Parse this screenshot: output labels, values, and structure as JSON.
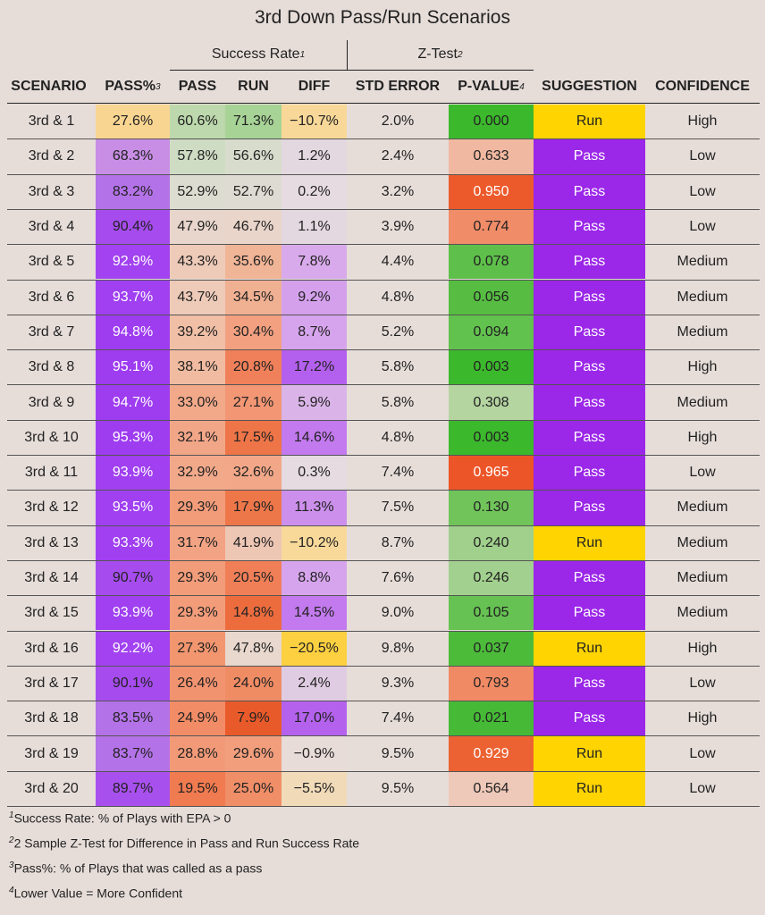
{
  "title": "3rd Down Pass/Run Scenarios",
  "groups": [
    {
      "label": "Success Rate",
      "note": "1"
    },
    {
      "label": "Z-Test",
      "note": "2"
    }
  ],
  "columns": [
    {
      "label": "SCENARIO"
    },
    {
      "label": "PASS%",
      "note": "3"
    },
    {
      "label": "PASS"
    },
    {
      "label": "RUN"
    },
    {
      "label": "DIFF"
    },
    {
      "label": "STD ERROR"
    },
    {
      "label": "P-VALUE",
      "note": "4"
    },
    {
      "label": "SUGGESTION"
    },
    {
      "label": "CONFIDENCE"
    }
  ],
  "rows": [
    {
      "cells": [
        "3rd & 1",
        "27.6%",
        "60.6%",
        "71.3%",
        "−10.7%",
        "2.0%",
        "0.000",
        "Run",
        "High"
      ],
      "colors": [
        null,
        "#f9d592",
        "#bcd8ac",
        "#a7d396",
        "#f8d898",
        null,
        "#3cb82c",
        "#ffd400",
        null
      ]
    },
    {
      "cells": [
        "3rd & 2",
        "68.3%",
        "57.8%",
        "56.6%",
        "1.2%",
        "2.4%",
        "0.633",
        "Pass",
        "Low"
      ],
      "colors": [
        null,
        "#c88ee6",
        "#cfdcc4",
        "#d8dccc",
        "#e3d8df",
        null,
        "#f0b8a0",
        [
          "#9b27e8",
          "#ffffff"
        ],
        null
      ]
    },
    {
      "cells": [
        "3rd & 3",
        "83.2%",
        "52.9%",
        "52.7%",
        "0.2%",
        "3.2%",
        "0.950",
        "Pass",
        "Low"
      ],
      "colors": [
        null,
        "#b472e8",
        "#dcdcd0",
        "#dedcd2",
        "#e5dbe0",
        null,
        [
          "#ec5a2c",
          "#ffffff"
        ],
        [
          "#9b27e8",
          "#ffffff"
        ],
        null
      ]
    },
    {
      "cells": [
        "3rd & 4",
        "90.4%",
        "47.9%",
        "46.7%",
        "1.1%",
        "3.9%",
        "0.774",
        "Pass",
        "Low"
      ],
      "colors": [
        null,
        "#a64cee",
        "#e8d6cc",
        "#e9d5ca",
        "#e3d8df",
        null,
        "#f08c68",
        [
          "#9b27e8",
          "#ffffff"
        ],
        null
      ]
    },
    {
      "cells": [
        "3rd & 5",
        "92.9%",
        "43.3%",
        "35.6%",
        "7.8%",
        "4.4%",
        "0.078",
        "Pass",
        "Medium"
      ],
      "colors": [
        null,
        [
          "#a242f0",
          "#ffffff"
        ],
        "#eecab8",
        "#f0b496",
        "#d8aaeb",
        null,
        "#5ec04a",
        [
          "#9b27e8",
          "#ffffff"
        ],
        null
      ]
    },
    {
      "cells": [
        "3rd & 6",
        "93.7%",
        "43.7%",
        "34.5%",
        "9.2%",
        "4.8%",
        "0.056",
        "Pass",
        "Medium"
      ],
      "colors": [
        null,
        [
          "#a040f0",
          "#ffffff"
        ],
        "#eecab8",
        "#f0b092",
        "#d4a0ec",
        null,
        "#56bd42",
        [
          "#9b27e8",
          "#ffffff"
        ],
        null
      ]
    },
    {
      "cells": [
        "3rd & 7",
        "94.8%",
        "39.2%",
        "30.4%",
        "8.7%",
        "5.2%",
        "0.094",
        "Pass",
        "Medium"
      ],
      "colors": [
        null,
        [
          "#9e3cf0",
          "#ffffff"
        ],
        "#f0bfa6",
        "#f2a080",
        "#d6a4ec",
        null,
        "#62c24e",
        [
          "#9b27e8",
          "#ffffff"
        ],
        null
      ]
    },
    {
      "cells": [
        "3rd & 8",
        "95.1%",
        "38.1%",
        "20.8%",
        "17.2%",
        "5.8%",
        "0.003",
        "Pass",
        "High"
      ],
      "colors": [
        null,
        [
          "#9e3cf0",
          "#ffffff"
        ],
        "#f0bba0",
        "#f0805a",
        "#b460ee",
        null,
        "#3cb82c",
        [
          "#9b27e8",
          "#ffffff"
        ],
        null
      ]
    },
    {
      "cells": [
        "3rd & 9",
        "94.7%",
        "33.0%",
        "27.1%",
        "5.9%",
        "5.8%",
        "0.308",
        "Pass",
        "Medium"
      ],
      "colors": [
        null,
        [
          "#9e3cf0",
          "#ffffff"
        ],
        "#f2a98a",
        "#f29674",
        "#dab4e8",
        null,
        "#b4d4a0",
        [
          "#9b27e8",
          "#ffffff"
        ],
        null
      ]
    },
    {
      "cells": [
        "3rd & 10",
        "95.3%",
        "32.1%",
        "17.5%",
        "14.6%",
        "4.8%",
        "0.003",
        "Pass",
        "High"
      ],
      "colors": [
        null,
        [
          "#9e3cf0",
          "#ffffff"
        ],
        "#f2a688",
        "#ee7548",
        "#c27aee",
        null,
        "#3cb82c",
        [
          "#9b27e8",
          "#ffffff"
        ],
        null
      ]
    },
    {
      "cells": [
        "3rd & 11",
        "93.9%",
        "32.9%",
        "32.6%",
        "0.3%",
        "7.4%",
        "0.965",
        "Pass",
        "Low"
      ],
      "colors": [
        null,
        [
          "#a040f0",
          "#ffffff"
        ],
        "#f2a98a",
        "#f2a888",
        "#e5dbe0",
        null,
        [
          "#ec5528",
          "#ffffff"
        ],
        [
          "#9b27e8",
          "#ffffff"
        ],
        null
      ]
    },
    {
      "cells": [
        "3rd & 12",
        "93.5%",
        "29.3%",
        "17.9%",
        "11.3%",
        "7.5%",
        "0.130",
        "Pass",
        "Medium"
      ],
      "colors": [
        null,
        [
          "#a040f0",
          "#ffffff"
        ],
        "#f29c7a",
        "#ee774a",
        "#cc90ec",
        null,
        "#70c45a",
        [
          "#9b27e8",
          "#ffffff"
        ],
        null
      ]
    },
    {
      "cells": [
        "3rd & 13",
        "93.3%",
        "31.7%",
        "41.9%",
        "−10.2%",
        "8.7%",
        "0.240",
        "Run",
        "Medium"
      ],
      "colors": [
        null,
        [
          "#a040f0",
          "#ffffff"
        ],
        "#f2a384",
        "#eec6b4",
        "#f8d99a",
        null,
        "#a0d08c",
        "#ffd400",
        null
      ]
    },
    {
      "cells": [
        "3rd & 14",
        "90.7%",
        "29.3%",
        "20.5%",
        "8.8%",
        "7.6%",
        "0.246",
        "Pass",
        "Medium"
      ],
      "colors": [
        null,
        "#a64cee",
        "#f29c7a",
        "#f07f58",
        "#d6a4ec",
        null,
        "#a2d08e",
        [
          "#9b27e8",
          "#ffffff"
        ],
        null
      ]
    },
    {
      "cells": [
        "3rd & 15",
        "93.9%",
        "29.3%",
        "14.8%",
        "14.5%",
        "9.0%",
        "0.105",
        "Pass",
        "Medium"
      ],
      "colors": [
        null,
        [
          "#a040f0",
          "#ffffff"
        ],
        "#f29c7a",
        "#ec6c3e",
        "#c27aee",
        null,
        "#66c252",
        [
          "#9b27e8",
          "#ffffff"
        ],
        null
      ]
    },
    {
      "cells": [
        "3rd & 16",
        "92.2%",
        "27.3%",
        "47.8%",
        "−20.5%",
        "9.8%",
        "0.037",
        "Run",
        "High"
      ],
      "colors": [
        null,
        [
          "#a242f0",
          "#ffffff"
        ],
        "#f2966f",
        "#e8d8ce",
        "#fcd040",
        null,
        "#4cbb3a",
        "#ffd400",
        null
      ]
    },
    {
      "cells": [
        "3rd & 17",
        "90.1%",
        "26.4%",
        "24.0%",
        "2.4%",
        "9.3%",
        "0.793",
        "Pass",
        "Low"
      ],
      "colors": [
        null,
        "#a64cee",
        "#f29370",
        "#f08c64",
        "#e0cce2",
        null,
        "#f08a64",
        [
          "#9b27e8",
          "#ffffff"
        ],
        null
      ]
    },
    {
      "cells": [
        "3rd & 18",
        "83.5%",
        "24.9%",
        "7.9%",
        "17.0%",
        "7.4%",
        "0.021",
        "Pass",
        "High"
      ],
      "colors": [
        null,
        "#b472e8",
        "#f28c66",
        "#e95a2a",
        "#b462ee",
        null,
        "#46ba36",
        [
          "#9b27e8",
          "#ffffff"
        ],
        null
      ]
    },
    {
      "cells": [
        "3rd & 19",
        "83.7%",
        "28.8%",
        "29.6%",
        "−0.9%",
        "9.5%",
        "0.929",
        "Run",
        "Low"
      ],
      "colors": [
        null,
        "#b472e8",
        "#f29a78",
        "#f29e7c",
        "#e8dcd8",
        null,
        [
          "#ec6232",
          "#ffffff"
        ],
        "#ffd400",
        null
      ]
    },
    {
      "cells": [
        "3rd & 20",
        "89.7%",
        "19.5%",
        "25.0%",
        "−5.5%",
        "9.5%",
        "0.564",
        "Run",
        "Low"
      ],
      "colors": [
        null,
        "#a850ee",
        "#f07b50",
        "#f08e68",
        "#f0dab8",
        null,
        "#eec8b8",
        "#ffd400",
        null
      ]
    }
  ],
  "footnotes": [
    {
      "mark": "1",
      "text": "Success Rate: % of Plays with EPA > 0"
    },
    {
      "mark": "2",
      "text": "2 Sample Z-Test for Difference in Pass and Run Success Rate"
    },
    {
      "mark": "3",
      "text": "Pass%: % of Plays that was called as a pass"
    },
    {
      "mark": "4",
      "text": "Lower Value = More Confident"
    }
  ]
}
